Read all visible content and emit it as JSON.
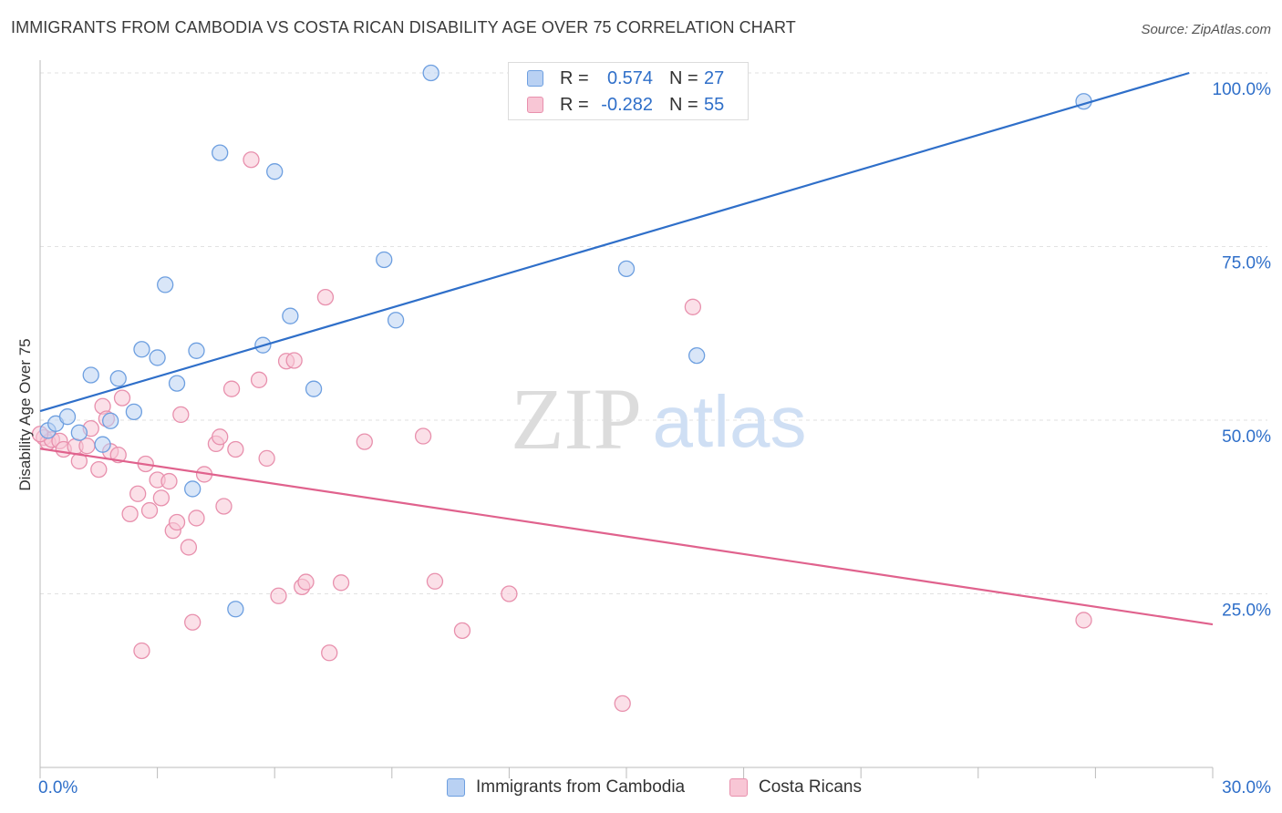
{
  "header": {
    "title": "IMMIGRANTS FROM CAMBODIA VS COSTA RICAN DISABILITY AGE OVER 75 CORRELATION CHART",
    "source": "Source: ZipAtlas.com"
  },
  "watermark": {
    "zip": "ZIP",
    "atlas": "atlas"
  },
  "stats": [
    {
      "r_label": "R =",
      "r_value": "0.574",
      "n_label": "N =",
      "n_value": "27",
      "fill": "#b9d1f3",
      "stroke": "#6d9fe0"
    },
    {
      "r_label": "R =",
      "r_value": "-0.282",
      "n_label": "N =",
      "n_value": "55",
      "fill": "#f8c6d5",
      "stroke": "#e890ad"
    }
  ],
  "legend": [
    {
      "label": "Immigrants from Cambodia",
      "fill": "#b9d1f3",
      "stroke": "#6d9fe0"
    },
    {
      "label": "Costa Ricans",
      "fill": "#f8c6d5",
      "stroke": "#e890ad"
    }
  ],
  "chart_data": {
    "type": "scatter",
    "title": "IMMIGRANTS FROM CAMBODIA VS COSTA RICAN DISABILITY AGE OVER 75 CORRELATION CHART",
    "xlabel": "",
    "ylabel": "Disability Age Over 75",
    "xlim": [
      0,
      30
    ],
    "ylim": [
      0,
      100
    ],
    "x_tick_labels": [
      "0.0%",
      "30.0%"
    ],
    "y_tick_labels": [
      "25.0%",
      "50.0%",
      "75.0%",
      "100.0%"
    ],
    "y_ticks": [
      25,
      50,
      75,
      100
    ],
    "grid": true,
    "legend_position": "bottom",
    "series": [
      {
        "name": "Immigrants from Cambodia",
        "color": "#2f6fc9",
        "marker_fill": "#b9d1f3",
        "marker_stroke": "#6d9fe0",
        "trend": {
          "x": [
            0,
            29.4
          ],
          "y": [
            51.3,
            100
          ]
        },
        "points": [
          [
            0.2,
            48.5
          ],
          [
            0.4,
            49.5
          ],
          [
            0.7,
            50.5
          ],
          [
            1.0,
            48.2
          ],
          [
            1.3,
            56.5
          ],
          [
            1.6,
            46.5
          ],
          [
            1.8,
            49.9
          ],
          [
            2.0,
            56.0
          ],
          [
            2.4,
            51.2
          ],
          [
            2.6,
            60.2
          ],
          [
            3.0,
            59.0
          ],
          [
            3.2,
            69.5
          ],
          [
            3.5,
            55.3
          ],
          [
            3.9,
            40.1
          ],
          [
            4.0,
            60.0
          ],
          [
            4.6,
            88.5
          ],
          [
            5.0,
            22.8
          ],
          [
            5.7,
            60.8
          ],
          [
            6.0,
            85.8
          ],
          [
            6.4,
            65.0
          ],
          [
            7.0,
            54.5
          ],
          [
            8.8,
            73.1
          ],
          [
            9.1,
            64.4
          ],
          [
            10.0,
            100.0
          ],
          [
            15.0,
            71.8
          ],
          [
            16.8,
            59.3
          ],
          [
            26.7,
            95.9
          ]
        ]
      },
      {
        "name": "Costa Ricans",
        "color": "#e0628d",
        "marker_fill": "#f8c6d5",
        "marker_stroke": "#e890ad",
        "trend": {
          "x": [
            0,
            30
          ],
          "y": [
            45.9,
            20.6
          ]
        },
        "points": [
          [
            0.1,
            47.5
          ],
          [
            0.2,
            46.8
          ],
          [
            0.3,
            47.2
          ],
          [
            0.5,
            47.0
          ],
          [
            0.6,
            45.8
          ],
          [
            0.9,
            46.2
          ],
          [
            1.0,
            44.1
          ],
          [
            1.2,
            46.3
          ],
          [
            1.3,
            48.8
          ],
          [
            1.5,
            42.9
          ],
          [
            1.6,
            52.0
          ],
          [
            1.7,
            50.2
          ],
          [
            1.8,
            45.5
          ],
          [
            2.0,
            45.0
          ],
          [
            2.1,
            53.2
          ],
          [
            2.3,
            36.5
          ],
          [
            2.5,
            39.4
          ],
          [
            2.6,
            16.8
          ],
          [
            2.7,
            43.7
          ],
          [
            2.8,
            37.0
          ],
          [
            3.0,
            41.4
          ],
          [
            3.1,
            38.8
          ],
          [
            3.3,
            41.2
          ],
          [
            3.4,
            34.1
          ],
          [
            3.5,
            35.3
          ],
          [
            3.6,
            50.8
          ],
          [
            3.8,
            31.7
          ],
          [
            3.9,
            20.9
          ],
          [
            4.0,
            35.9
          ],
          [
            4.2,
            42.2
          ],
          [
            4.5,
            46.6
          ],
          [
            4.6,
            47.6
          ],
          [
            4.7,
            37.6
          ],
          [
            4.9,
            54.5
          ],
          [
            5.0,
            45.8
          ],
          [
            5.4,
            87.5
          ],
          [
            5.6,
            55.8
          ],
          [
            5.8,
            44.5
          ],
          [
            6.1,
            24.7
          ],
          [
            6.3,
            58.5
          ],
          [
            6.5,
            58.6
          ],
          [
            6.7,
            26.0
          ],
          [
            6.8,
            26.7
          ],
          [
            7.3,
            67.7
          ],
          [
            7.4,
            16.5
          ],
          [
            7.7,
            26.6
          ],
          [
            8.3,
            46.9
          ],
          [
            9.8,
            47.7
          ],
          [
            10.1,
            26.8
          ],
          [
            10.8,
            19.7
          ],
          [
            12.0,
            25.0
          ],
          [
            14.9,
            9.2
          ],
          [
            16.7,
            66.3
          ],
          [
            26.7,
            21.2
          ],
          [
            0.0,
            48.0
          ]
        ]
      }
    ]
  }
}
